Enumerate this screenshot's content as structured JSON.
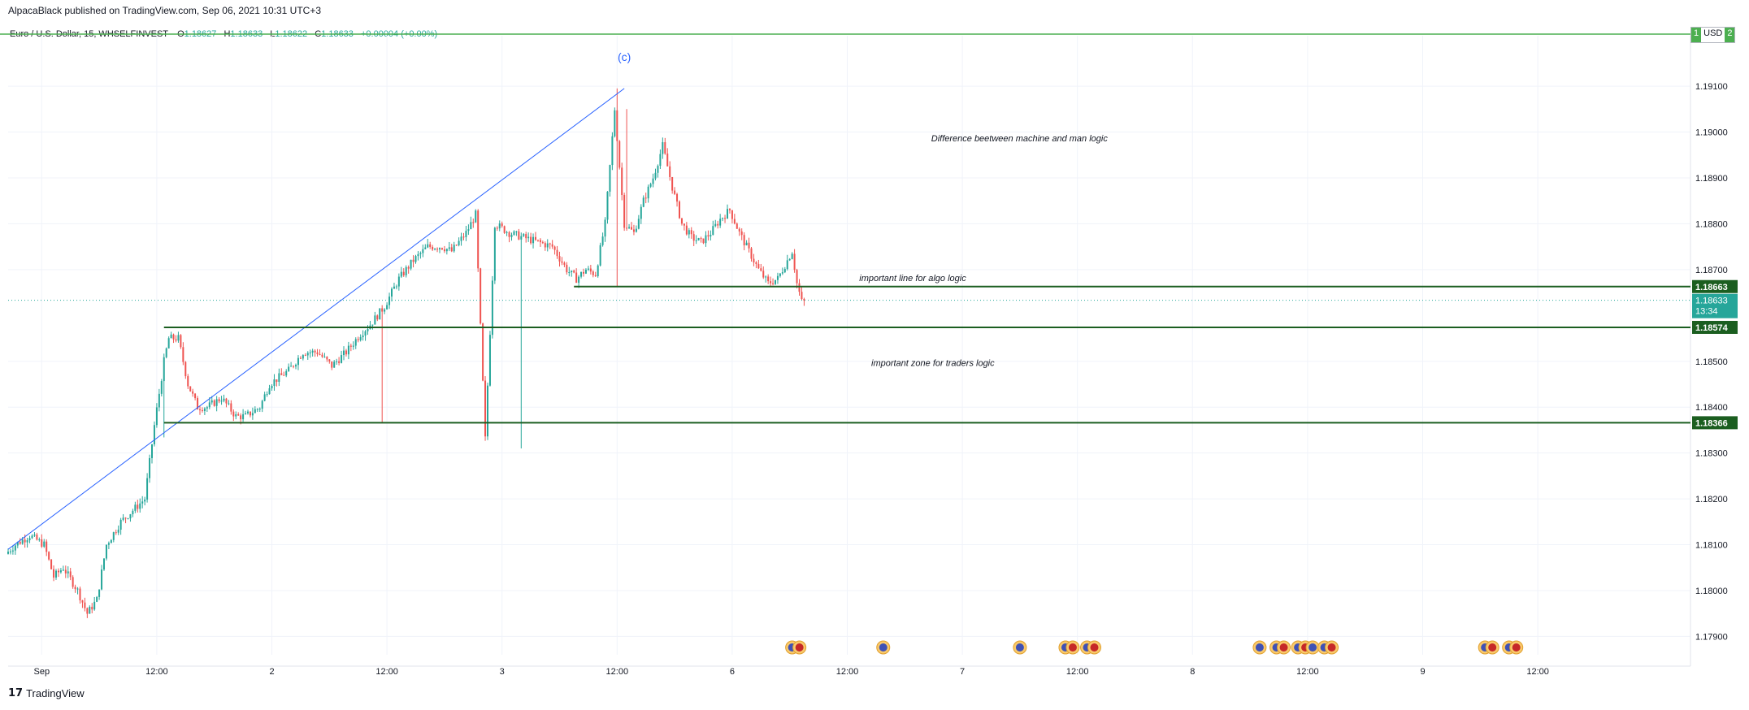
{
  "header": {
    "publish_text": "AlpacaBlack published on TradingView.com, Sep 06, 2021 10:31 UTC+3",
    "symbol": "Euro / U.S. Dollar, 15, WHSELFINVEST",
    "ohlc": [
      {
        "k": "O",
        "v": "1.18627"
      },
      {
        "k": "H",
        "v": "1.18633"
      },
      {
        "k": "L",
        "v": "1.18622"
      },
      {
        "k": "C",
        "v": "1.18633"
      }
    ],
    "change": "+0.00004 (+0.00%)"
  },
  "currency_box": {
    "left": "1",
    "label": "USD",
    "right": "2"
  },
  "footer": {
    "brand": "TradingView",
    "mark": "17"
  },
  "colors": {
    "up": "#26a69a",
    "down": "#ef5350",
    "level_line": "#1b5e20",
    "trend_line": "#2962ff",
    "top_line": "#4caf50",
    "label_bg": "#1b5e20",
    "current_price_bg": "#26a69a"
  },
  "chart_data": {
    "type": "candlestick",
    "title": "",
    "y_range": [
      1.1786,
      1.1921
    ],
    "y_ticks": [
      "1.19100",
      "1.19000",
      "1.18900",
      "1.18800",
      "1.18700",
      "1.18500",
      "1.18400",
      "1.18300",
      "1.18200",
      "1.18100",
      "1.18000",
      "1.17900"
    ],
    "x_ticks": [
      {
        "label": "Sep",
        "bar": 14
      },
      {
        "label": "12:00",
        "bar": 62
      },
      {
        "label": "2",
        "bar": 110
      },
      {
        "label": "12:00",
        "bar": 158
      },
      {
        "label": "3",
        "bar": 206
      },
      {
        "label": "12:00",
        "bar": 254
      },
      {
        "label": "6",
        "bar": 302
      },
      {
        "label": "12:00",
        "bar": 350
      },
      {
        "label": "7",
        "bar": 398
      },
      {
        "label": "12:00",
        "bar": 446
      },
      {
        "label": "8",
        "bar": 494
      },
      {
        "label": "12:00",
        "bar": 542
      },
      {
        "label": "9",
        "bar": 590
      },
      {
        "label": "12:00",
        "bar": 638
      }
    ],
    "price_path": [
      [
        0,
        1.1808
      ],
      [
        4,
        1.181
      ],
      [
        10,
        1.1812
      ],
      [
        16,
        1.181
      ],
      [
        20,
        1.1803
      ],
      [
        24,
        1.1805
      ],
      [
        30,
        1.18
      ],
      [
        34,
        1.1795
      ],
      [
        38,
        1.1798
      ],
      [
        42,
        1.181
      ],
      [
        48,
        1.1815
      ],
      [
        54,
        1.1818
      ],
      [
        58,
        1.182
      ],
      [
        62,
        1.1836
      ],
      [
        64,
        1.1843
      ],
      [
        66,
        1.185
      ],
      [
        68,
        1.1855
      ],
      [
        72,
        1.1855
      ],
      [
        76,
        1.1845
      ],
      [
        80,
        1.184
      ],
      [
        84,
        1.184
      ],
      [
        90,
        1.1842
      ],
      [
        96,
        1.1838
      ],
      [
        100,
        1.1838
      ],
      [
        106,
        1.184
      ],
      [
        110,
        1.1845
      ],
      [
        118,
        1.1848
      ],
      [
        124,
        1.1852
      ],
      [
        130,
        1.1852
      ],
      [
        136,
        1.1849
      ],
      [
        142,
        1.1852
      ],
      [
        148,
        1.1856
      ],
      [
        152,
        1.1858
      ],
      [
        158,
        1.1862
      ],
      [
        164,
        1.1868
      ],
      [
        170,
        1.1872
      ],
      [
        176,
        1.1875
      ],
      [
        182,
        1.1875
      ],
      [
        186,
        1.1874
      ],
      [
        192,
        1.1878
      ],
      [
        196,
        1.1882
      ],
      [
        200,
        1.1833
      ],
      [
        204,
        1.188
      ],
      [
        210,
        1.1878
      ],
      [
        216,
        1.1877
      ],
      [
        222,
        1.1876
      ],
      [
        228,
        1.1875
      ],
      [
        234,
        1.187
      ],
      [
        238,
        1.1868
      ],
      [
        242,
        1.187
      ],
      [
        246,
        1.1869
      ],
      [
        250,
        1.188
      ],
      [
        254,
        1.1905
      ],
      [
        258,
        1.188
      ],
      [
        262,
        1.1878
      ],
      [
        266,
        1.1885
      ],
      [
        270,
        1.189
      ],
      [
        274,
        1.1897
      ],
      [
        278,
        1.1888
      ],
      [
        282,
        1.188
      ],
      [
        286,
        1.1877
      ],
      [
        290,
        1.1876
      ],
      [
        294,
        1.1878
      ],
      [
        298,
        1.1881
      ],
      [
        302,
        1.1883
      ],
      [
        306,
        1.1878
      ],
      [
        310,
        1.1874
      ],
      [
        314,
        1.187
      ],
      [
        318,
        1.1867
      ],
      [
        322,
        1.1868
      ],
      [
        326,
        1.1872
      ],
      [
        328,
        1.1874
      ],
      [
        330,
        1.1867
      ],
      [
        332,
        1.1863
      ]
    ],
    "wicks": [
      {
        "bar": 65,
        "low": 1.18334
      },
      {
        "bar": 156,
        "low": 1.18366
      },
      {
        "bar": 254,
        "high": 1.19095,
        "low": 1.18663
      },
      {
        "bar": 258,
        "high": 1.1905
      },
      {
        "bar": 214,
        "low": 1.1831
      }
    ],
    "horizontal_levels": [
      {
        "price": 1.18663,
        "label": "1.18663",
        "from_bar": 236
      },
      {
        "price": 1.18574,
        "label": "1.18574",
        "from_bar": 65
      },
      {
        "price": 1.18366,
        "label": "1.18366",
        "from_bar": 65
      }
    ],
    "current_price": {
      "price": 1.18633,
      "label": "1.18633",
      "countdown": "13:34"
    },
    "trend_line": {
      "from": [
        0,
        1.1809
      ],
      "to": [
        257,
        1.19095
      ]
    },
    "annotations": [
      {
        "text": "(c)",
        "bar": 257,
        "price": 1.19155,
        "color": "#2962ff"
      },
      {
        "text": "Difference beetween machine and man logic",
        "bar": 385,
        "price": 1.1898
      },
      {
        "text": "important line for algo logic",
        "bar": 355,
        "price": 1.18675
      },
      {
        "text": "important zone for traders logic",
        "bar": 360,
        "price": 1.1849
      }
    ],
    "event_icons": [
      {
        "bar": 327,
        "count": 2
      },
      {
        "bar": 365,
        "count": 1
      },
      {
        "bar": 422,
        "count": 1
      },
      {
        "bar": 441,
        "count": 2
      },
      {
        "bar": 450,
        "count": 2
      },
      {
        "bar": 522,
        "count": 1
      },
      {
        "bar": 529,
        "count": 2
      },
      {
        "bar": 538,
        "count": 3
      },
      {
        "bar": 549,
        "count": 2
      },
      {
        "bar": 616,
        "count": 2
      },
      {
        "bar": 626,
        "count": 2
      }
    ]
  }
}
